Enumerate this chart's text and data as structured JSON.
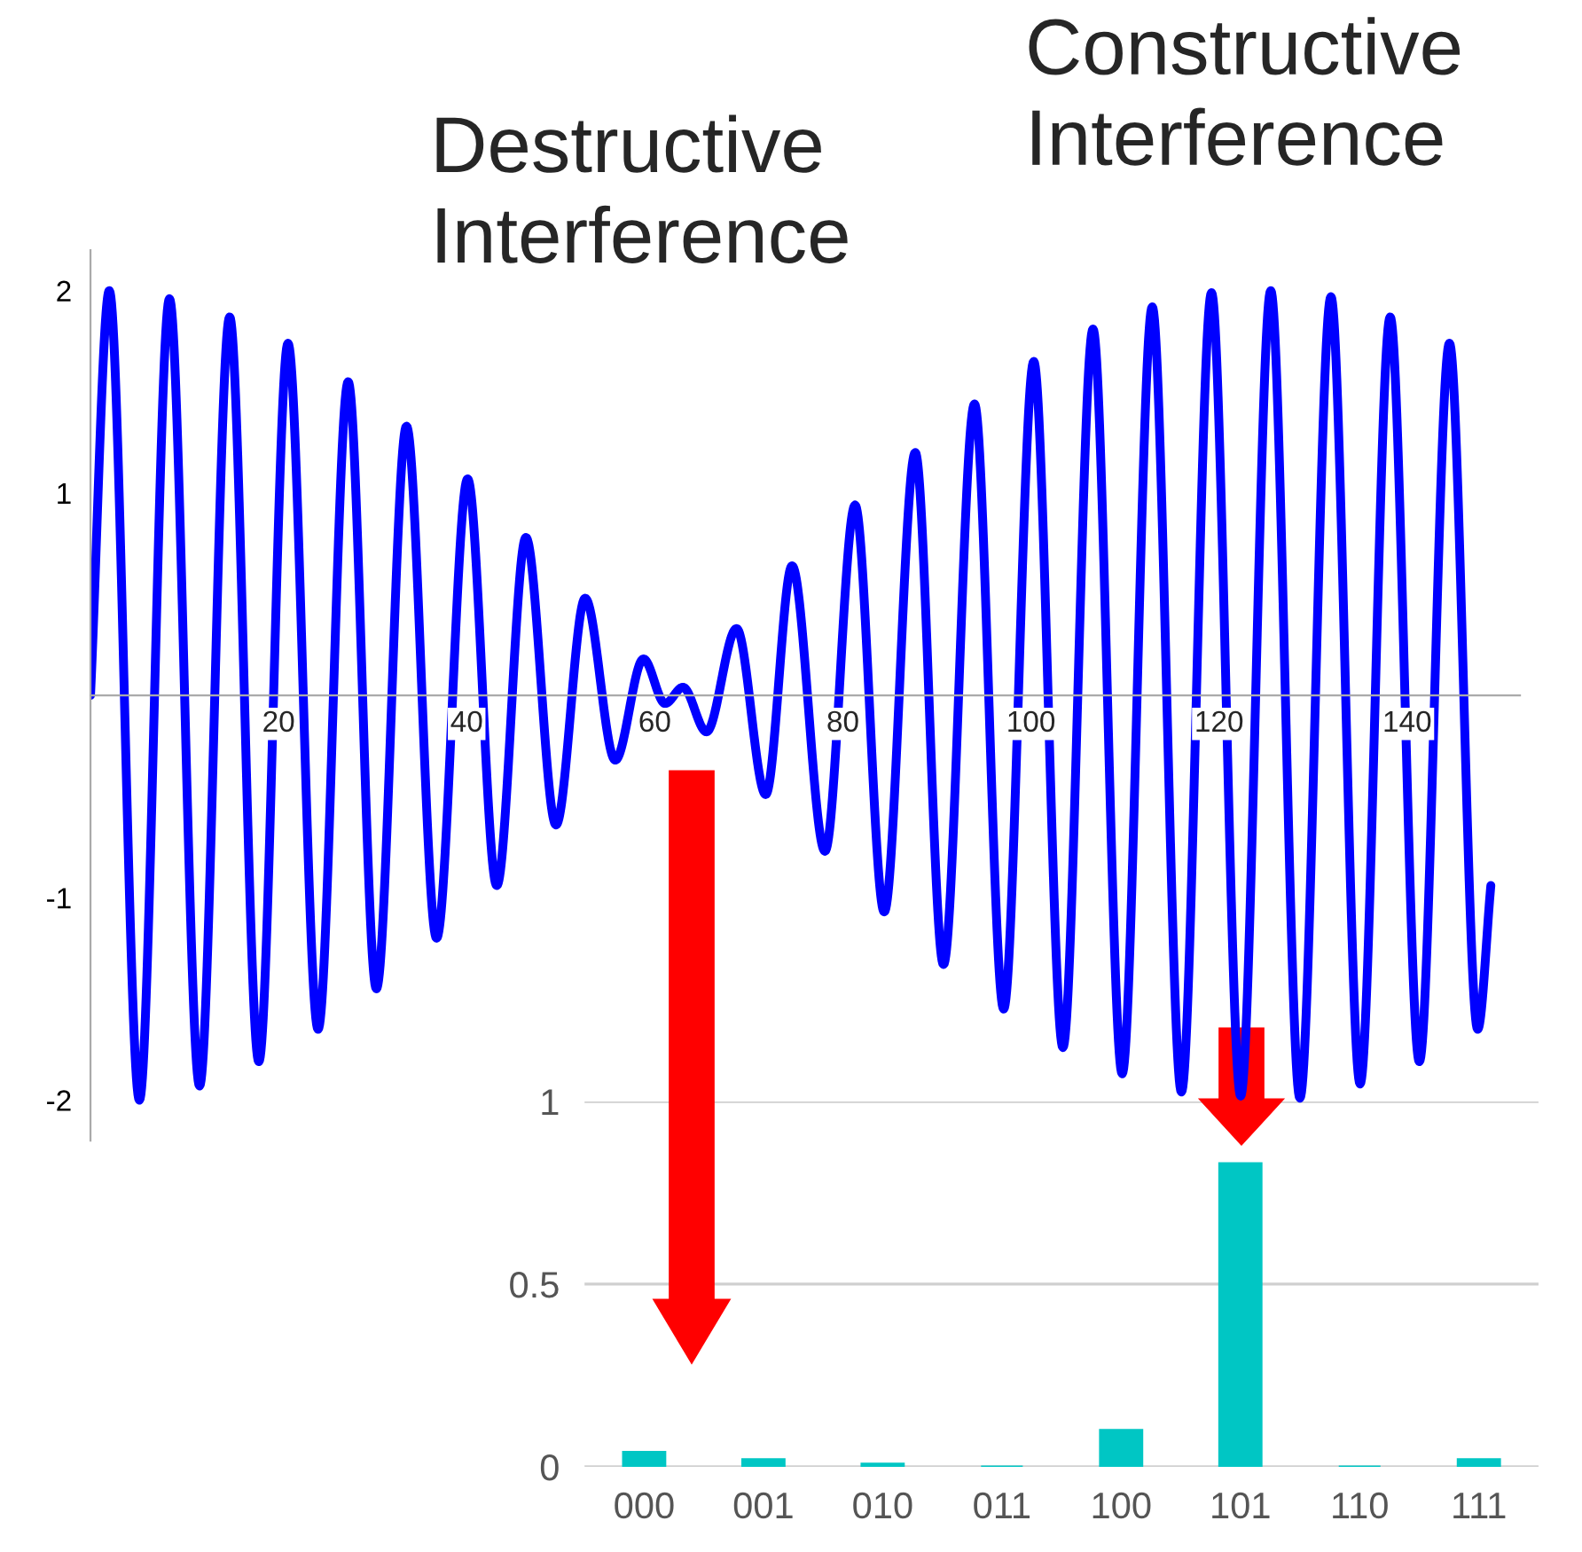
{
  "chart_data": [
    {
      "type": "line",
      "annotations": [
        "Destructive\nInterference",
        "Constructive\nInterference"
      ],
      "x": [
        0,
        2.0,
        5.2,
        8.4,
        11.6,
        14.8,
        17.9,
        21.0,
        24.2,
        27.4,
        30.4,
        33.6,
        36.8,
        40.1,
        43.2,
        46.3,
        49.5,
        52.6,
        55.8,
        58.8,
        61.1,
        63.0,
        65.5,
        68.7,
        71.8,
        74.6,
        78.1,
        81.3,
        84.4,
        87.7,
        90.7,
        94.0,
        97.1,
        100.3,
        103.4,
        106.6,
        109.7,
        112.9,
        116.0,
        119.2,
        122.3,
        125.5,
        128.6,
        131.9,
        135.0,
        138.2,
        141.3,
        144.5,
        147.5,
        148.9
      ],
      "series": [
        {
          "color": "#0000ff",
          "values": [
            0,
            2.0,
            -2.0,
            1.96,
            -1.93,
            1.87,
            -1.81,
            1.74,
            -1.65,
            1.55,
            -1.45,
            1.33,
            -1.2,
            1.07,
            -0.94,
            0.78,
            -0.64,
            0.48,
            -0.32,
            0.18,
            -0.04,
            0.04,
            -0.18,
            0.33,
            -0.49,
            0.64,
            -0.77,
            0.94,
            -1.07,
            1.2,
            -1.33,
            1.44,
            -1.55,
            1.65,
            -1.74,
            1.81,
            -1.87,
            1.92,
            -1.96,
            1.99,
            -1.98,
            2.0,
            -1.99,
            1.97,
            -1.92,
            1.87,
            -1.81,
            1.74,
            -1.65,
            -0.94
          ]
        }
      ],
      "xlim": [
        0,
        152
      ],
      "ylim": [
        -2.2,
        2.2
      ],
      "xticks": [
        20,
        40,
        60,
        80,
        100,
        120,
        140
      ],
      "yticks": [
        -2,
        -1,
        1,
        2
      ]
    },
    {
      "type": "bar",
      "categories": [
        "000",
        "001",
        "010",
        "011",
        "100",
        "101",
        "110",
        "111"
      ],
      "values": [
        0.04,
        0.02,
        0.008,
        0,
        0.1,
        0.83,
        0,
        0.02
      ],
      "colors": [
        "#00c6c4",
        "#00c6c4",
        "#00c6c4",
        "#00c6c4",
        "#00c6c4",
        "#00c6c4",
        "#00c6c4",
        "#00c6c4"
      ],
      "ylim": [
        0,
        1
      ],
      "yticks": [
        0,
        0.5,
        1
      ],
      "grid": "y"
    }
  ]
}
